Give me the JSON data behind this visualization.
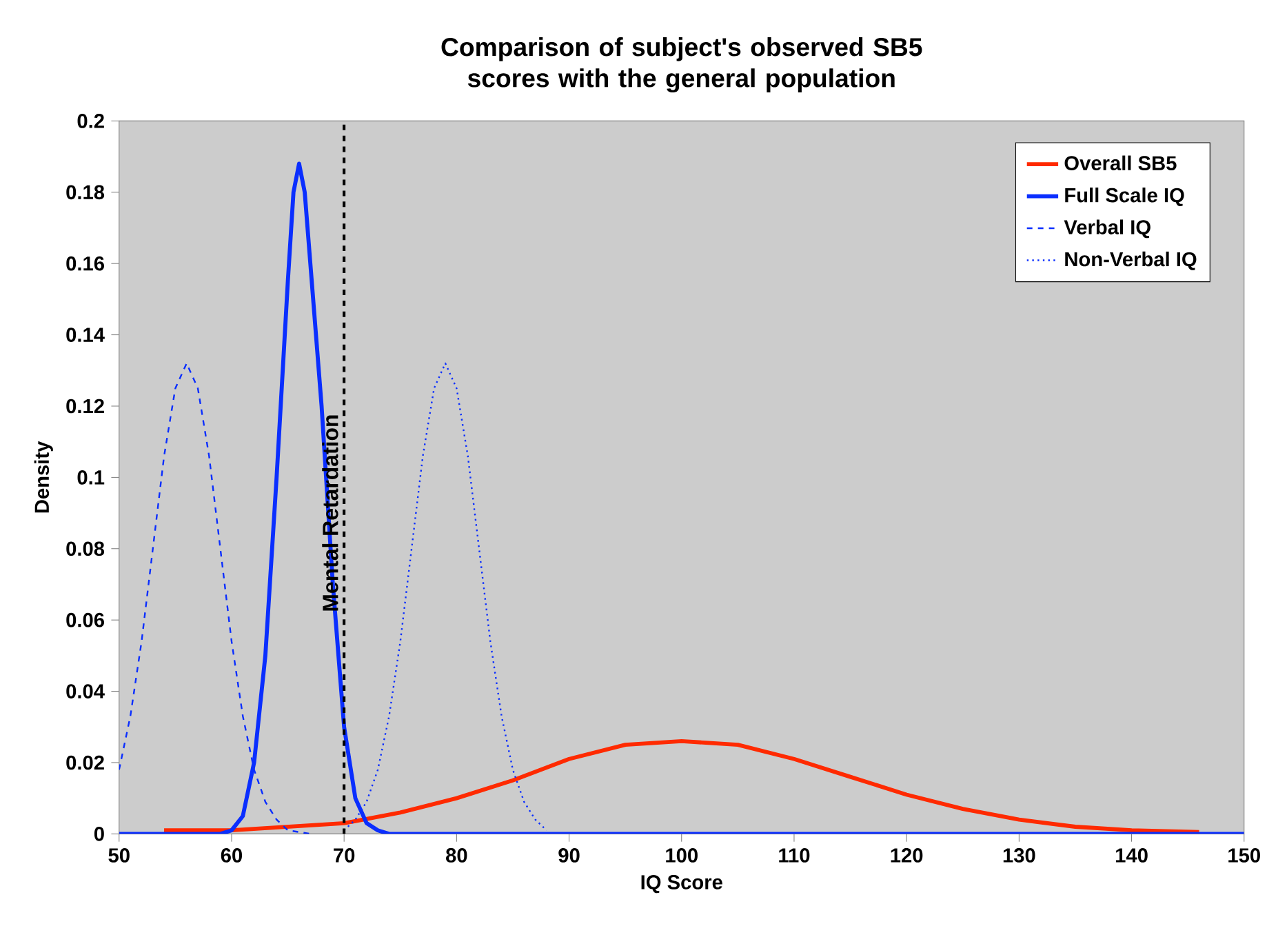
{
  "chart_data": {
    "type": "line",
    "title": "Comparison of subject's observed SB5 scores with the general population",
    "xlabel": "IQ Score",
    "ylabel": "Density",
    "xlim": [
      50,
      150
    ],
    "xticks": [
      50,
      60,
      70,
      80,
      90,
      100,
      110,
      120,
      130,
      140,
      150
    ],
    "ylim": [
      0,
      0.2
    ],
    "yticks": [
      0,
      0.02,
      0.04,
      0.06,
      0.08,
      0.1,
      0.12,
      0.14,
      0.16,
      0.18,
      0.2
    ],
    "grid": false,
    "legend": "top right",
    "marker": "none",
    "ref_lines": [
      {
        "axis": "x",
        "value": 70,
        "label": "Mental Retardation",
        "color": "#000000",
        "line_style": "dashed"
      }
    ],
    "series": [
      {
        "name": "Overall SB5",
        "color": "#ff2a00",
        "line_style": "solid",
        "x": [
          54,
          60,
          65,
          70,
          75,
          80,
          85,
          90,
          95,
          100,
          105,
          110,
          115,
          120,
          125,
          130,
          135,
          140,
          146
        ],
        "values": [
          0.001,
          0.001,
          0.002,
          0.003,
          0.006,
          0.01,
          0.015,
          0.021,
          0.025,
          0.026,
          0.025,
          0.021,
          0.016,
          0.011,
          0.007,
          0.004,
          0.002,
          0.001,
          0.0005
        ]
      },
      {
        "name": "Full Scale IQ",
        "color": "#0a2eff",
        "line_style": "solid",
        "x": [
          50,
          59,
          60,
          61,
          62,
          63,
          64,
          65,
          65.5,
          66,
          66.5,
          67,
          68,
          69,
          70,
          71,
          72,
          73,
          74,
          150
        ],
        "values": [
          0,
          0,
          0.001,
          0.005,
          0.02,
          0.05,
          0.1,
          0.155,
          0.18,
          0.188,
          0.18,
          0.16,
          0.12,
          0.07,
          0.03,
          0.01,
          0.003,
          0.001,
          0,
          0
        ]
      },
      {
        "name": "Verbal IQ",
        "color": "#0a2eff",
        "line_style": "dashed",
        "x": [
          50,
          51,
          52,
          53,
          54,
          55,
          56,
          57,
          58,
          59,
          60,
          61,
          62,
          63,
          64,
          65,
          66,
          67
        ],
        "values": [
          0.018,
          0.033,
          0.054,
          0.08,
          0.106,
          0.125,
          0.132,
          0.125,
          0.106,
          0.08,
          0.054,
          0.033,
          0.018,
          0.009,
          0.004,
          0.001,
          0.0005,
          0
        ]
      },
      {
        "name": "Non-Verbal IQ",
        "color": "#0a2eff",
        "line_style": "dotted",
        "x": [
          70,
          71,
          72,
          73,
          74,
          75,
          76,
          77,
          78,
          79,
          80,
          81,
          82,
          83,
          84,
          85,
          86,
          87,
          88
        ],
        "values": [
          0.001,
          0.004,
          0.009,
          0.018,
          0.033,
          0.054,
          0.08,
          0.106,
          0.125,
          0.132,
          0.125,
          0.106,
          0.08,
          0.054,
          0.033,
          0.018,
          0.009,
          0.004,
          0.001
        ]
      }
    ]
  }
}
